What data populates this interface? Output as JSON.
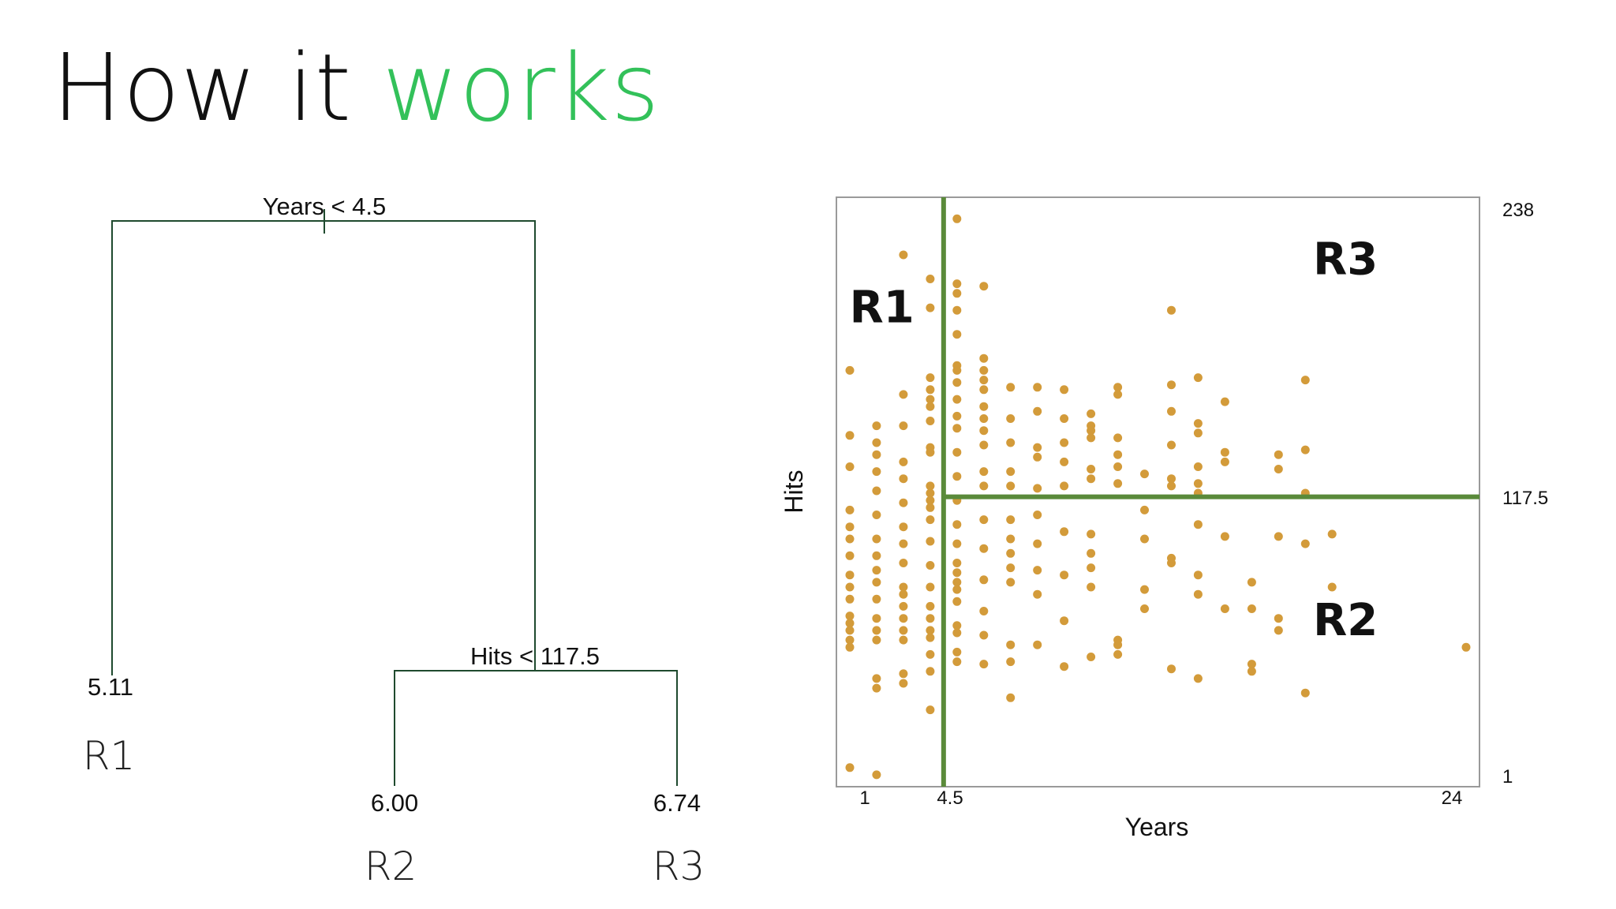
{
  "slide": {
    "title_part1": "How it ",
    "title_part2": "works",
    "accent_color": "#33c15a"
  },
  "tree": {
    "root_split": "Years < 4.5",
    "second_split": "Hits < 117.5",
    "leaves": [
      {
        "value": "5.11",
        "region": "R1"
      },
      {
        "value": "6.00",
        "region": "R2"
      },
      {
        "value": "6.74",
        "region": "R3"
      }
    ],
    "line_color": "#1f4a2e"
  },
  "chart_data": {
    "type": "scatter",
    "xlabel": "Years",
    "ylabel": "Hits",
    "xlim": [
      0.5,
      24.5
    ],
    "ylim": [
      1,
      238
    ],
    "xticks": [
      "1",
      "4.5",
      "24"
    ],
    "yticks": [
      "238",
      "117.5",
      "1"
    ],
    "point_color": "#d39b3a",
    "split_color": "#5a8a3a",
    "splits": {
      "years": 4.5,
      "hits": 117.5
    },
    "regions": [
      {
        "label": "R1",
        "x": 2.2,
        "y": 190
      },
      {
        "label": "R3",
        "x": 19.5,
        "y": 210
      },
      {
        "label": "R2",
        "x": 19.5,
        "y": 60
      }
    ],
    "points": [
      [
        1,
        5
      ],
      [
        2,
        2
      ],
      [
        1,
        170
      ],
      [
        1,
        143
      ],
      [
        1,
        130
      ],
      [
        1,
        112
      ],
      [
        1,
        105
      ],
      [
        1,
        100
      ],
      [
        1,
        93
      ],
      [
        1,
        85
      ],
      [
        1,
        80
      ],
      [
        1,
        75
      ],
      [
        1,
        68
      ],
      [
        1,
        65
      ],
      [
        1,
        62
      ],
      [
        1,
        58
      ],
      [
        1,
        55
      ],
      [
        2,
        147
      ],
      [
        2,
        140
      ],
      [
        2,
        135
      ],
      [
        2,
        128
      ],
      [
        2,
        120
      ],
      [
        2,
        110
      ],
      [
        2,
        100
      ],
      [
        2,
        93
      ],
      [
        2,
        87
      ],
      [
        2,
        82
      ],
      [
        2,
        75
      ],
      [
        2,
        67
      ],
      [
        2,
        62
      ],
      [
        2,
        58
      ],
      [
        2,
        42
      ],
      [
        2,
        38
      ],
      [
        3,
        218
      ],
      [
        3,
        160
      ],
      [
        3,
        147
      ],
      [
        3,
        132
      ],
      [
        3,
        125
      ],
      [
        3,
        115
      ],
      [
        3,
        105
      ],
      [
        3,
        98
      ],
      [
        3,
        90
      ],
      [
        3,
        80
      ],
      [
        3,
        77
      ],
      [
        3,
        72
      ],
      [
        3,
        67
      ],
      [
        3,
        62
      ],
      [
        3,
        58
      ],
      [
        3,
        44
      ],
      [
        3,
        40
      ],
      [
        4,
        208
      ],
      [
        4,
        196
      ],
      [
        4,
        167
      ],
      [
        4,
        162
      ],
      [
        4,
        158
      ],
      [
        4,
        155
      ],
      [
        4,
        149
      ],
      [
        4,
        138
      ],
      [
        4,
        136
      ],
      [
        4,
        122
      ],
      [
        4,
        119
      ],
      [
        4,
        116
      ],
      [
        4,
        113
      ],
      [
        4,
        108
      ],
      [
        4,
        99
      ],
      [
        4,
        89
      ],
      [
        4,
        80
      ],
      [
        4,
        72
      ],
      [
        4,
        67
      ],
      [
        4,
        62
      ],
      [
        4,
        59
      ],
      [
        4,
        52
      ],
      [
        4,
        45
      ],
      [
        4,
        29
      ],
      [
        5,
        233
      ],
      [
        5,
        206
      ],
      [
        5,
        202
      ],
      [
        5,
        195
      ],
      [
        5,
        185
      ],
      [
        5,
        172
      ],
      [
        5,
        170
      ],
      [
        5,
        165
      ],
      [
        5,
        158
      ],
      [
        5,
        151
      ],
      [
        5,
        146
      ],
      [
        5,
        136
      ],
      [
        5,
        126
      ],
      [
        5,
        116
      ],
      [
        5,
        106
      ],
      [
        5,
        98
      ],
      [
        5,
        90
      ],
      [
        5,
        86
      ],
      [
        5,
        82
      ],
      [
        5,
        79
      ],
      [
        5,
        74
      ],
      [
        5,
        64
      ],
      [
        5,
        61
      ],
      [
        5,
        53
      ],
      [
        5,
        49
      ],
      [
        6,
        205
      ],
      [
        6,
        175
      ],
      [
        6,
        170
      ],
      [
        6,
        166
      ],
      [
        6,
        162
      ],
      [
        6,
        155
      ],
      [
        6,
        150
      ],
      [
        6,
        145
      ],
      [
        6,
        139
      ],
      [
        6,
        128
      ],
      [
        6,
        122
      ],
      [
        6,
        108
      ],
      [
        6,
        96
      ],
      [
        6,
        83
      ],
      [
        6,
        70
      ],
      [
        6,
        60
      ],
      [
        6,
        48
      ],
      [
        7,
        163
      ],
      [
        7,
        150
      ],
      [
        7,
        140
      ],
      [
        7,
        128
      ],
      [
        7,
        122
      ],
      [
        7,
        108
      ],
      [
        7,
        100
      ],
      [
        7,
        94
      ],
      [
        7,
        88
      ],
      [
        7,
        82
      ],
      [
        7,
        56
      ],
      [
        7,
        49
      ],
      [
        7,
        34
      ],
      [
        8,
        163
      ],
      [
        8,
        153
      ],
      [
        8,
        138
      ],
      [
        8,
        134
      ],
      [
        8,
        121
      ],
      [
        8,
        110
      ],
      [
        8,
        98
      ],
      [
        8,
        87
      ],
      [
        8,
        77
      ],
      [
        8,
        56
      ],
      [
        9,
        162
      ],
      [
        9,
        150
      ],
      [
        9,
        140
      ],
      [
        9,
        132
      ],
      [
        9,
        122
      ],
      [
        9,
        103
      ],
      [
        9,
        85
      ],
      [
        9,
        66
      ],
      [
        9,
        47
      ],
      [
        10,
        152
      ],
      [
        10,
        147
      ],
      [
        10,
        145
      ],
      [
        10,
        142
      ],
      [
        10,
        129
      ],
      [
        10,
        125
      ],
      [
        10,
        102
      ],
      [
        10,
        94
      ],
      [
        10,
        88
      ],
      [
        10,
        80
      ],
      [
        10,
        51
      ],
      [
        11,
        163
      ],
      [
        11,
        160
      ],
      [
        11,
        142
      ],
      [
        11,
        135
      ],
      [
        11,
        130
      ],
      [
        11,
        123
      ],
      [
        11,
        52
      ],
      [
        11,
        56
      ],
      [
        11,
        58
      ],
      [
        12,
        127
      ],
      [
        12,
        112
      ],
      [
        12,
        100
      ],
      [
        12,
        79
      ],
      [
        12,
        71
      ],
      [
        13,
        195
      ],
      [
        13,
        164
      ],
      [
        13,
        153
      ],
      [
        13,
        139
      ],
      [
        13,
        125
      ],
      [
        13,
        122
      ],
      [
        13,
        90
      ],
      [
        13,
        92
      ],
      [
        13,
        46
      ],
      [
        14,
        167
      ],
      [
        14,
        148
      ],
      [
        14,
        144
      ],
      [
        14,
        130
      ],
      [
        14,
        123
      ],
      [
        14,
        119
      ],
      [
        14,
        106
      ],
      [
        14,
        85
      ],
      [
        14,
        77
      ],
      [
        14,
        42
      ],
      [
        15,
        157
      ],
      [
        15,
        136
      ],
      [
        15,
        132
      ],
      [
        15,
        101
      ],
      [
        15,
        71
      ],
      [
        16,
        82
      ],
      [
        16,
        48
      ],
      [
        16,
        45
      ],
      [
        16,
        71
      ],
      [
        17,
        135
      ],
      [
        17,
        129
      ],
      [
        17,
        101
      ],
      [
        17,
        67
      ],
      [
        17,
        62
      ],
      [
        18,
        166
      ],
      [
        18,
        137
      ],
      [
        18,
        119
      ],
      [
        18,
        98
      ],
      [
        18,
        36
      ],
      [
        19,
        102
      ],
      [
        19,
        80
      ],
      [
        24,
        55
      ]
    ]
  }
}
